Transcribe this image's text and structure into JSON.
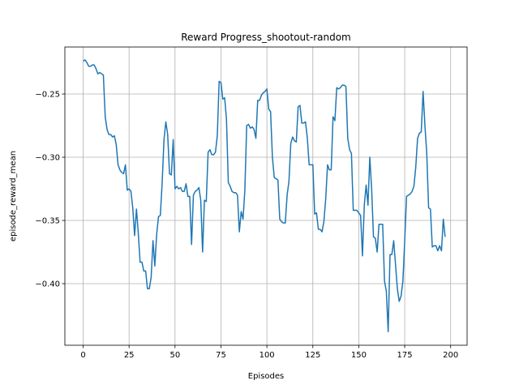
{
  "chart_data": {
    "type": "line",
    "title": "Reward Progress_shootout-random",
    "x_label": "Episodes",
    "y_label": "episode_reward_mean",
    "series": [
      {
        "color": "#1f77b4",
        "values": [
          -0.224,
          -0.223,
          -0.225,
          -0.228,
          -0.228,
          -0.227,
          -0.227,
          -0.23,
          -0.234,
          -0.233,
          -0.234,
          -0.235,
          -0.268,
          -0.278,
          -0.282,
          -0.282,
          -0.284,
          -0.283,
          -0.29,
          -0.306,
          -0.31,
          -0.312,
          -0.313,
          -0.306,
          -0.326,
          -0.325,
          -0.327,
          -0.34,
          -0.362,
          -0.341,
          -0.36,
          -0.383,
          -0.383,
          -0.39,
          -0.39,
          -0.404,
          -0.404,
          -0.395,
          -0.366,
          -0.386,
          -0.361,
          -0.347,
          -0.346,
          -0.32,
          -0.286,
          -0.272,
          -0.282,
          -0.313,
          -0.314,
          -0.286,
          -0.325,
          -0.323,
          -0.325,
          -0.324,
          -0.327,
          -0.327,
          -0.321,
          -0.331,
          -0.331,
          -0.369,
          -0.33,
          -0.327,
          -0.326,
          -0.324,
          -0.334,
          -0.375,
          -0.334,
          -0.335,
          -0.296,
          -0.294,
          -0.298,
          -0.298,
          -0.296,
          -0.283,
          -0.24,
          -0.241,
          -0.254,
          -0.253,
          -0.27,
          -0.32,
          -0.323,
          -0.327,
          -0.328,
          -0.328,
          -0.33,
          -0.359,
          -0.343,
          -0.349,
          -0.326,
          -0.275,
          -0.274,
          -0.277,
          -0.276,
          -0.278,
          -0.285,
          -0.255,
          -0.255,
          -0.251,
          -0.249,
          -0.248,
          -0.246,
          -0.262,
          -0.264,
          -0.3,
          -0.316,
          -0.317,
          -0.318,
          -0.349,
          -0.351,
          -0.352,
          -0.352,
          -0.33,
          -0.319,
          -0.289,
          -0.284,
          -0.287,
          -0.288,
          -0.26,
          -0.259,
          -0.273,
          -0.273,
          -0.272,
          -0.285,
          -0.306,
          -0.306,
          -0.306,
          -0.345,
          -0.344,
          -0.357,
          -0.357,
          -0.359,
          -0.351,
          -0.333,
          -0.306,
          -0.31,
          -0.31,
          -0.268,
          -0.271,
          -0.245,
          -0.246,
          -0.245,
          -0.243,
          -0.243,
          -0.244,
          -0.285,
          -0.294,
          -0.297,
          -0.342,
          -0.342,
          -0.342,
          -0.344,
          -0.346,
          -0.378,
          -0.338,
          -0.322,
          -0.338,
          -0.3,
          -0.325,
          -0.363,
          -0.364,
          -0.375,
          -0.353,
          -0.353,
          -0.353,
          -0.398,
          -0.406,
          -0.438,
          -0.377,
          -0.377,
          -0.366,
          -0.385,
          -0.404,
          -0.414,
          -0.41,
          -0.398,
          -0.366,
          -0.331,
          -0.33,
          -0.329,
          -0.327,
          -0.323,
          -0.308,
          -0.285,
          -0.281,
          -0.28,
          -0.248,
          -0.275,
          -0.297,
          -0.34,
          -0.341,
          -0.371,
          -0.37,
          -0.37,
          -0.374,
          -0.37,
          -0.374,
          -0.349,
          -0.363
        ]
      }
    ],
    "xlim": [
      -9.95,
      208.95
    ],
    "xticks": [
      0,
      25,
      50,
      75,
      100,
      125,
      150,
      175,
      200
    ],
    "ylim": [
      -0.4487,
      -0.2128
    ],
    "yticks": [
      {
        "value": -0.4,
        "label": "−0.40"
      },
      {
        "value": -0.35,
        "label": "−0.35"
      },
      {
        "value": -0.3,
        "label": "−0.30"
      },
      {
        "value": -0.25,
        "label": "−0.25"
      }
    ],
    "grid": true
  }
}
